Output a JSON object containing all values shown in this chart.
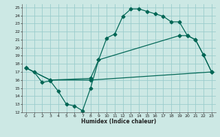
{
  "bg_color": "#cce8e4",
  "grid_color": "#99cccc",
  "line_color": "#006655",
  "xlabel": "Humidex (Indice chaleur)",
  "xlim": [
    -0.5,
    23.5
  ],
  "ylim": [
    12,
    25.4
  ],
  "xticks": [
    0,
    1,
    2,
    3,
    4,
    5,
    6,
    7,
    8,
    9,
    10,
    11,
    12,
    13,
    14,
    15,
    16,
    17,
    18,
    19,
    20,
    21,
    22,
    23
  ],
  "yticks": [
    12,
    13,
    14,
    15,
    16,
    17,
    18,
    19,
    20,
    21,
    22,
    23,
    24,
    25
  ],
  "line1_x": [
    0,
    1,
    2,
    3,
    4,
    5,
    6,
    7,
    8,
    9,
    10,
    11,
    12,
    13,
    14,
    15,
    16,
    17,
    18,
    19,
    20,
    21,
    22,
    23
  ],
  "line1_y": [
    17.5,
    17.0,
    15.7,
    15.9,
    14.6,
    13.0,
    12.8,
    12.2,
    15.0,
    18.5,
    21.2,
    21.7,
    23.9,
    24.8,
    24.8,
    24.5,
    24.2,
    23.9,
    23.2,
    23.2,
    21.5,
    21.0,
    19.1,
    17.0
  ],
  "line2_x": [
    0,
    3,
    8,
    9,
    19,
    20,
    21,
    22,
    23
  ],
  "line2_y": [
    17.5,
    16.0,
    16.2,
    18.5,
    21.5,
    21.5,
    21.0,
    19.1,
    17.0
  ],
  "line3_x": [
    0,
    3,
    8,
    23
  ],
  "line3_y": [
    17.5,
    16.0,
    16.0,
    17.0
  ]
}
